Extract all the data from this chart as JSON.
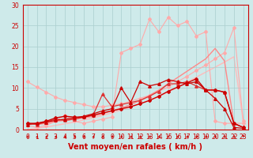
{
  "xlabel": "Vent moyen/en rafales ( km/h )",
  "xlim": [
    -0.5,
    23.5
  ],
  "ylim": [
    0,
    30
  ],
  "xticks": [
    0,
    1,
    2,
    3,
    4,
    5,
    6,
    7,
    8,
    9,
    10,
    11,
    12,
    13,
    14,
    15,
    16,
    17,
    18,
    19,
    20,
    21,
    22,
    23
  ],
  "yticks": [
    0,
    5,
    10,
    15,
    20,
    25,
    30
  ],
  "background_color": "#ceeaea",
  "grid_color": "#aacece",
  "lines": [
    {
      "x": [
        0,
        1,
        2,
        3,
        4,
        5,
        6,
        7,
        8,
        9,
        10,
        11,
        12,
        13,
        14,
        15,
        16,
        17,
        18,
        19,
        20,
        21,
        22,
        23
      ],
      "y": [
        0.0,
        0.3,
        0.6,
        1.0,
        1.4,
        1.8,
        2.3,
        2.8,
        3.4,
        4.0,
        4.7,
        5.4,
        6.2,
        7.0,
        8.0,
        9.0,
        10.2,
        11.4,
        12.6,
        13.8,
        15.0,
        16.2,
        17.5,
        2.0
      ],
      "color": "#ffbbbb",
      "marker": null,
      "markersize": 0,
      "lw": 1.0,
      "zorder": 1
    },
    {
      "x": [
        0,
        1,
        2,
        3,
        4,
        5,
        6,
        7,
        8,
        9,
        10,
        11,
        12,
        13,
        14,
        15,
        16,
        17,
        18,
        19,
        20,
        21,
        22,
        23
      ],
      "y": [
        11.5,
        10.2,
        9.0,
        7.8,
        7.0,
        6.5,
        6.0,
        5.5,
        5.5,
        5.8,
        6.2,
        6.8,
        7.5,
        8.2,
        9.2,
        10.2,
        11.5,
        12.8,
        14.2,
        15.5,
        17.0,
        18.5,
        24.5,
        2.0
      ],
      "color": "#ffaaaa",
      "marker": "D",
      "markersize": 2.0,
      "lw": 0.8,
      "zorder": 2
    },
    {
      "x": [
        0,
        1,
        2,
        3,
        4,
        5,
        6,
        7,
        8,
        9,
        10,
        11,
        12,
        13,
        14,
        15,
        16,
        17,
        18,
        19,
        20,
        21,
        22,
        23
      ],
      "y": [
        1.0,
        0.5,
        1.0,
        2.0,
        3.5,
        2.0,
        1.5,
        2.0,
        2.5,
        3.0,
        18.5,
        19.5,
        20.5,
        26.5,
        23.5,
        27.0,
        25.0,
        26.0,
        22.5,
        23.5,
        2.0,
        1.5,
        1.5,
        1.5
      ],
      "color": "#ffaaaa",
      "marker": "D",
      "markersize": 2.0,
      "lw": 0.8,
      "zorder": 2
    },
    {
      "x": [
        0,
        1,
        2,
        3,
        4,
        5,
        6,
        7,
        8,
        9,
        10,
        11,
        12,
        13,
        14,
        15,
        16,
        17,
        18,
        19,
        20,
        21,
        22,
        23
      ],
      "y": [
        1.5,
        1.2,
        1.5,
        2.0,
        2.2,
        2.5,
        2.8,
        3.2,
        3.8,
        4.5,
        5.2,
        6.0,
        7.0,
        8.2,
        9.5,
        11.0,
        12.5,
        14.0,
        15.5,
        17.0,
        19.5,
        16.5,
        1.5,
        0.5
      ],
      "color": "#ff8888",
      "marker": null,
      "markersize": 0,
      "lw": 1.0,
      "zorder": 2
    },
    {
      "x": [
        0,
        1,
        2,
        3,
        4,
        5,
        6,
        7,
        8,
        9,
        10,
        11,
        12,
        13,
        14,
        15,
        16,
        17,
        18,
        19,
        20,
        21,
        22,
        23
      ],
      "y": [
        1.5,
        1.2,
        1.8,
        2.5,
        2.2,
        2.5,
        3.0,
        3.5,
        8.5,
        5.5,
        6.0,
        6.5,
        7.0,
        8.0,
        9.2,
        11.0,
        11.0,
        11.5,
        10.5,
        9.5,
        9.5,
        9.0,
        1.5,
        0.5
      ],
      "color": "#dd3333",
      "marker": "^",
      "markersize": 2.5,
      "lw": 0.9,
      "zorder": 3
    },
    {
      "x": [
        0,
        1,
        2,
        3,
        4,
        5,
        6,
        7,
        8,
        9,
        10,
        11,
        12,
        13,
        14,
        15,
        16,
        17,
        18,
        19,
        20,
        21,
        22,
        23
      ],
      "y": [
        1.2,
        1.5,
        1.8,
        2.2,
        2.5,
        2.8,
        3.2,
        3.8,
        4.5,
        5.0,
        10.0,
        6.5,
        11.5,
        10.5,
        11.0,
        12.0,
        11.5,
        11.0,
        11.5,
        9.5,
        7.5,
        5.0,
        0.5,
        0.3
      ],
      "color": "#cc0000",
      "marker": "^",
      "markersize": 2.5,
      "lw": 0.9,
      "zorder": 4
    },
    {
      "x": [
        0,
        1,
        2,
        3,
        4,
        5,
        6,
        7,
        8,
        9,
        10,
        11,
        12,
        13,
        14,
        15,
        16,
        17,
        18,
        19,
        20,
        21,
        22,
        23
      ],
      "y": [
        1.5,
        1.5,
        2.0,
        2.8,
        3.2,
        3.0,
        3.0,
        3.5,
        4.0,
        4.5,
        5.0,
        5.5,
        6.2,
        7.0,
        8.0,
        9.2,
        10.2,
        11.2,
        12.2,
        9.5,
        9.5,
        9.0,
        1.5,
        0.5
      ],
      "color": "#cc0000",
      "marker": "D",
      "markersize": 2.0,
      "lw": 1.0,
      "zorder": 4
    }
  ],
  "xlabel_fontsize": 7,
  "tick_fontsize": 5.5,
  "label_color": "#cc0000"
}
